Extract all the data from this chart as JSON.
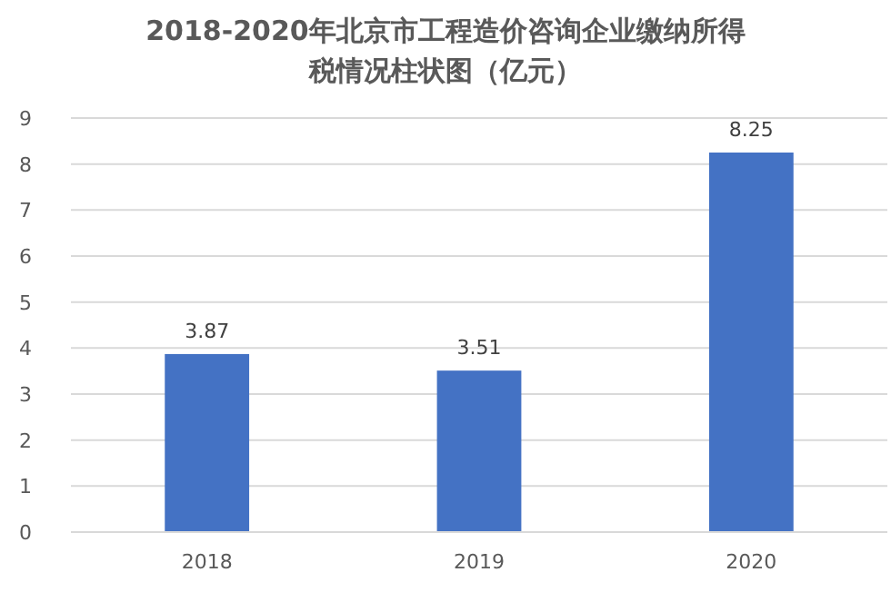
{
  "chart_data": {
    "type": "bar",
    "title": "2018-2020年北京市工程造价咨询企业缴纳所得税情况柱状图（亿元）",
    "categories": [
      "2018",
      "2019",
      "2020"
    ],
    "values": [
      3.87,
      3.51,
      8.25
    ],
    "color": "#4472c4",
    "ylim": [
      0,
      9
    ],
    "yticks": [
      0,
      1,
      2,
      3,
      4,
      5,
      6,
      7,
      8,
      9
    ],
    "grid": "y",
    "data_labels": true,
    "legend": false
  }
}
